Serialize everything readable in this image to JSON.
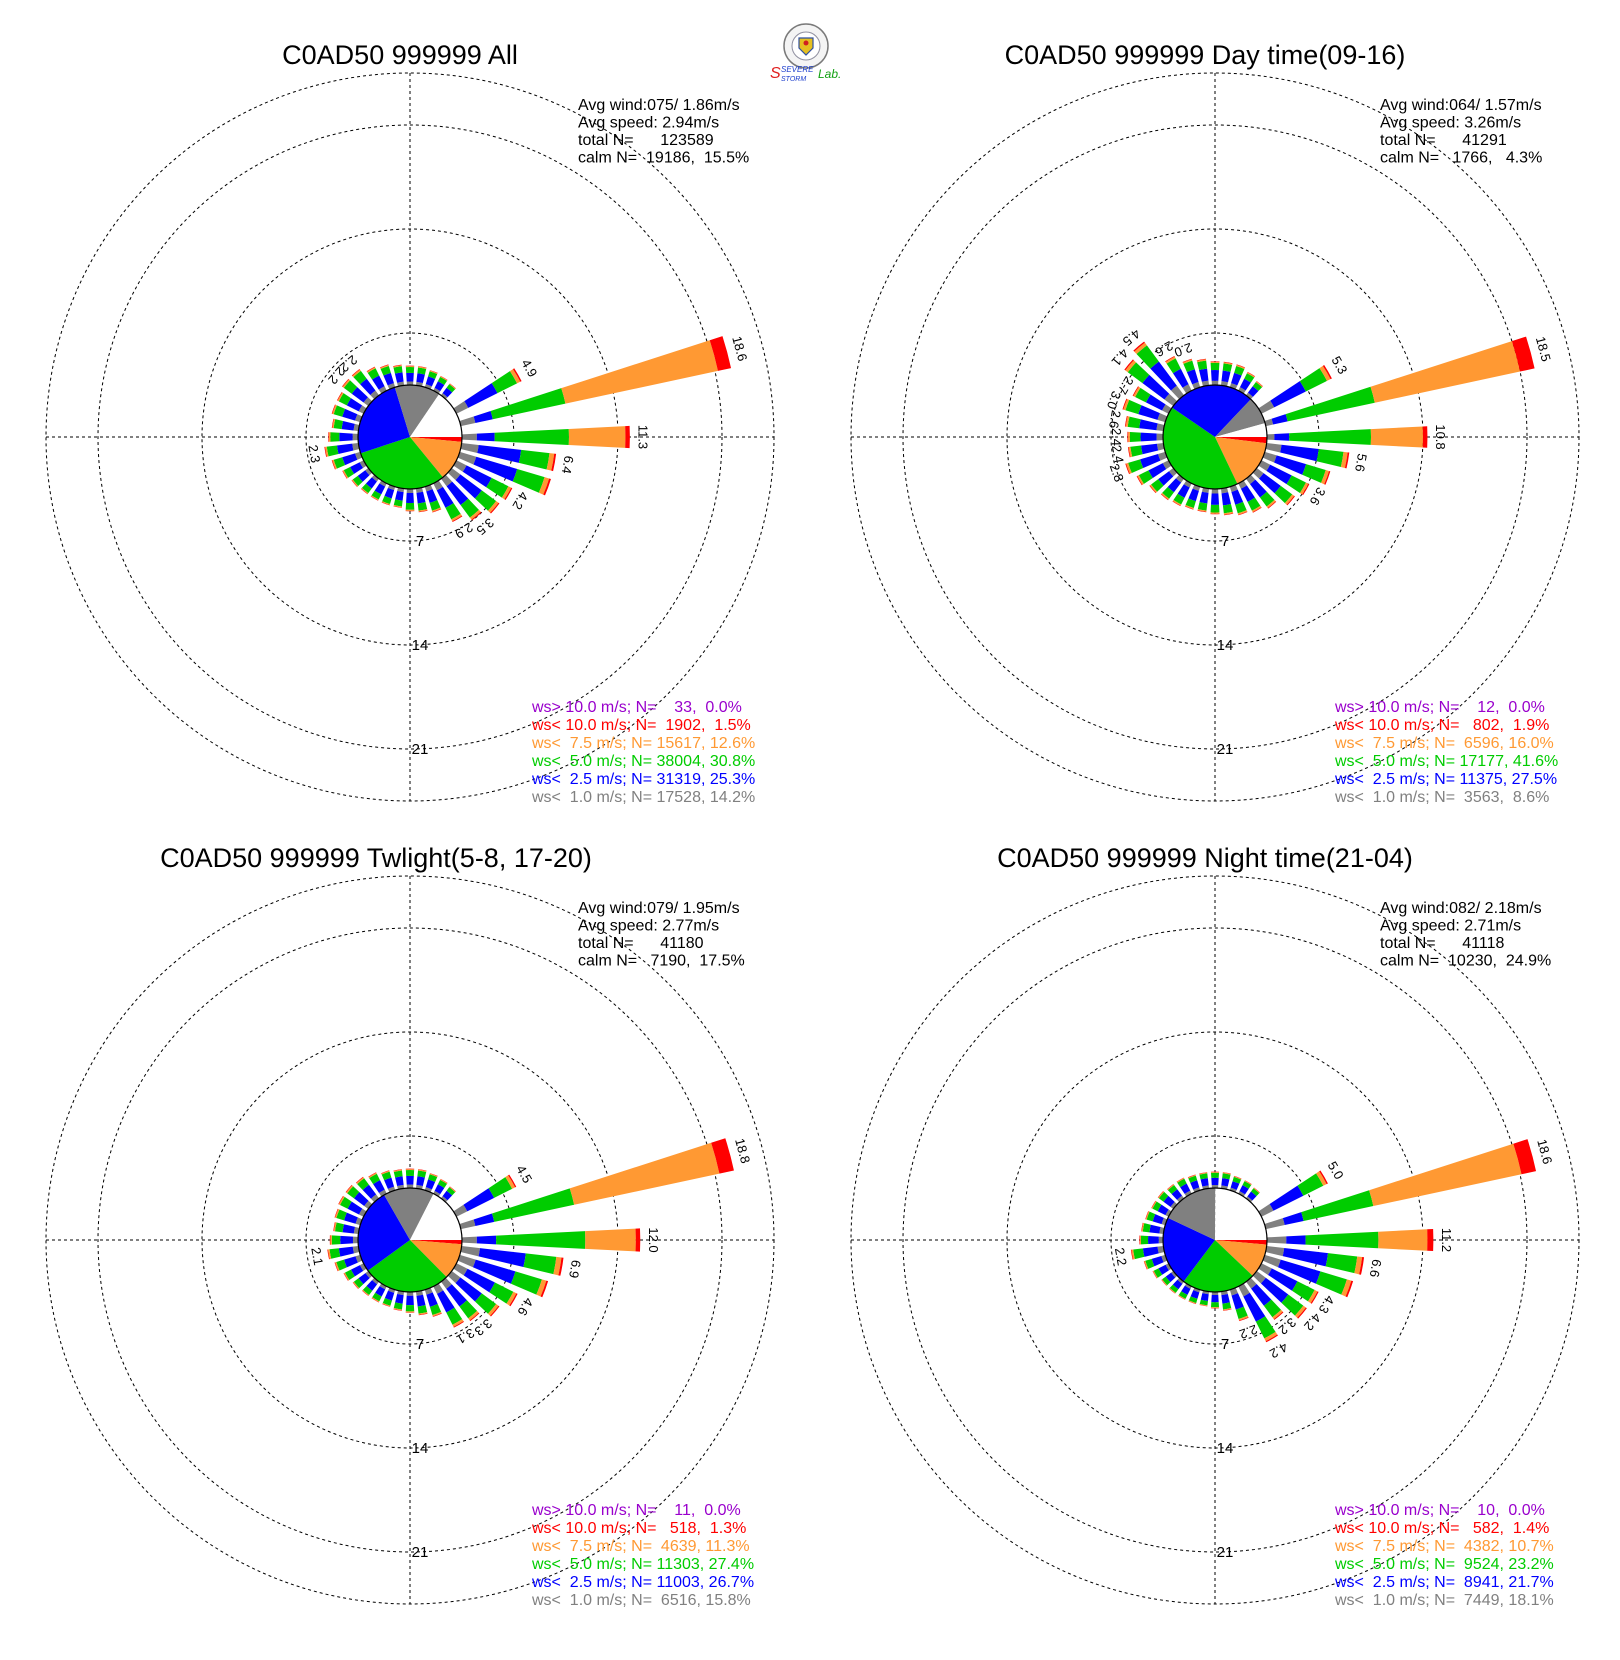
{
  "logo": {
    "lines": [
      "SEVERE",
      "STORM",
      "Lab."
    ],
    "colors": {
      "s_big": "#e02020",
      "evere": "#1a3ccc",
      "torm": "#1a3ccc",
      "lab": "#10a010"
    }
  },
  "colors": {
    "gt10": "#9900cc",
    "lt10": "#ff0000",
    "lt7_5": "#ff9933",
    "lt5": "#00cc00",
    "lt2_5": "#0000ff",
    "lt1": "#808080",
    "calm": "#ffffff",
    "grid": "#000000"
  },
  "chart_data": [
    {
      "type": "wind-rose",
      "title": "C0AD50 999999 All",
      "stats": [
        "Avg wind:075/ 1.86m/s",
        "Avg speed: 2.94m/s",
        "total N=      123589",
        "calm N=  19186,  15.5%"
      ],
      "ring_labels": [
        "7",
        "14",
        "21"
      ],
      "rings_percent": [
        7,
        14,
        21
      ],
      "grid": true,
      "legend": [
        {
          "text": "ws> 10.0 m/s; N=    33,  0.0%",
          "color_key": "gt10"
        },
        {
          "text": "ws< 10.0 m/s; N=  1902,  1.5%",
          "color_key": "lt10"
        },
        {
          "text": "ws<  7.5 m/s; N= 15617, 12.6%",
          "color_key": "lt7_5"
        },
        {
          "text": "ws<  5.0 m/s; N= 38004, 30.8%",
          "color_key": "lt5"
        },
        {
          "text": "ws<  2.5 m/s; N= 31319, 25.3%",
          "color_key": "lt2_5"
        },
        {
          "text": "ws<  1.0 m/s; N= 17528, 14.2%",
          "color_key": "lt1"
        }
      ],
      "calm_pie_percent": {
        "lt1": 14.2,
        "lt2_5": 25.3,
        "lt5": 30.8,
        "lt7_5": 12.6,
        "lt10": 1.5,
        "calm": 15.5
      },
      "bars": [
        {
          "dir": 0,
          "total": 1.3
        },
        {
          "dir": 10,
          "total": 1.3
        },
        {
          "dir": 20,
          "total": 1.2
        },
        {
          "dir": 30,
          "total": 1.1
        },
        {
          "dir": 40,
          "total": 1.0
        },
        {
          "dir": 60,
          "total": 4.9,
          "label": "4.9"
        },
        {
          "dir": 75,
          "total": 18.6,
          "label": "18.6",
          "parts": {
            "lt1": 1.0,
            "lt2_5": 1.2,
            "lt5": 5.0,
            "lt7_5": 10.5,
            "lt10": 0.9
          }
        },
        {
          "dir": 90,
          "total": 11.3,
          "label": "11.3",
          "parts": {
            "lt1": 1.0,
            "lt2_5": 1.2,
            "lt5": 5.0,
            "lt7_5": 3.8,
            "lt10": 0.3
          }
        },
        {
          "dir": 100,
          "total": 6.4,
          "label": "6.4"
        },
        {
          "dir": 110,
          "total": 6.4
        },
        {
          "dir": 120,
          "total": 4.2,
          "label": "4.2"
        },
        {
          "dir": 130,
          "total": 4.0
        },
        {
          "dir": 140,
          "total": 3.5,
          "label": "3.5"
        },
        {
          "dir": 150,
          "total": 2.9,
          "label": "2.9"
        },
        {
          "dir": 160,
          "total": 1.8
        },
        {
          "dir": 170,
          "total": 1.6
        },
        {
          "dir": 180,
          "total": 1.5
        },
        {
          "dir": 190,
          "total": 1.3
        },
        {
          "dir": 200,
          "total": 1.3
        },
        {
          "dir": 210,
          "total": 1.3
        },
        {
          "dir": 220,
          "total": 1.3
        },
        {
          "dir": 230,
          "total": 1.4
        },
        {
          "dir": 240,
          "total": 1.6
        },
        {
          "dir": 250,
          "total": 2.0
        },
        {
          "dir": 260,
          "total": 2.3,
          "label": "2.3"
        },
        {
          "dir": 270,
          "total": 2.0
        },
        {
          "dir": 280,
          "total": 1.8
        },
        {
          "dir": 290,
          "total": 2.0
        },
        {
          "dir": 300,
          "total": 2.0
        },
        {
          "dir": 310,
          "total": 2.2,
          "label": "2.2"
        },
        {
          "dir": 320,
          "total": 2.2,
          "label": "2.2"
        },
        {
          "dir": 330,
          "total": 1.8
        },
        {
          "dir": 340,
          "total": 1.6
        },
        {
          "dir": 350,
          "total": 1.4
        }
      ]
    },
    {
      "type": "wind-rose",
      "title": "C0AD50 999999 Day time(09-16)",
      "stats": [
        "Avg wind:064/ 1.57m/s",
        "Avg speed: 3.26m/s",
        "total N=      41291",
        "calm N=   1766,   4.3%"
      ],
      "ring_labels": [
        "7",
        "14",
        "21"
      ],
      "rings_percent": [
        7,
        14,
        21
      ],
      "grid": true,
      "legend": [
        {
          "text": "ws> 10.0 m/s; N=    12,  0.0%",
          "color_key": "gt10"
        },
        {
          "text": "ws< 10.0 m/s; N=   802,  1.9%",
          "color_key": "lt10"
        },
        {
          "text": "ws<  7.5 m/s; N=  6596, 16.0%",
          "color_key": "lt7_5"
        },
        {
          "text": "ws<  5.0 m/s; N= 17177, 41.6%",
          "color_key": "lt5"
        },
        {
          "text": "ws<  2.5 m/s; N= 11375, 27.5%",
          "color_key": "lt2_5"
        },
        {
          "text": "ws<  1.0 m/s; N=  3563,  8.6%",
          "color_key": "lt1"
        }
      ],
      "calm_pie_percent": {
        "lt1": 8.6,
        "lt2_5": 27.5,
        "lt5": 41.6,
        "lt7_5": 16.0,
        "lt10": 1.9,
        "calm": 4.3
      },
      "bars": [
        {
          "dir": 0,
          "total": 1.6
        },
        {
          "dir": 10,
          "total": 1.6
        },
        {
          "dir": 20,
          "total": 1.6
        },
        {
          "dir": 30,
          "total": 1.4
        },
        {
          "dir": 40,
          "total": 1.2
        },
        {
          "dir": 60,
          "total": 5.3,
          "label": "5.3"
        },
        {
          "dir": 75,
          "total": 18.5,
          "label": "18.5",
          "parts": {
            "lt1": 0.5,
            "lt2_5": 1.0,
            "lt5": 6.0,
            "lt7_5": 10.0,
            "lt10": 1.0
          }
        },
        {
          "dir": 90,
          "total": 10.8,
          "label": "10.8",
          "parts": {
            "lt1": 0.5,
            "lt2_5": 1.0,
            "lt5": 5.5,
            "lt7_5": 3.5,
            "lt10": 0.3
          }
        },
        {
          "dir": 100,
          "total": 5.6,
          "label": "5.6"
        },
        {
          "dir": 110,
          "total": 4.6
        },
        {
          "dir": 120,
          "total": 3.6,
          "label": "3.6"
        },
        {
          "dir": 130,
          "total": 3.2
        },
        {
          "dir": 140,
          "total": 2.5
        },
        {
          "dir": 150,
          "total": 2.2
        },
        {
          "dir": 160,
          "total": 2.0
        },
        {
          "dir": 170,
          "total": 1.8
        },
        {
          "dir": 180,
          "total": 1.7
        },
        {
          "dir": 190,
          "total": 1.6
        },
        {
          "dir": 200,
          "total": 1.6
        },
        {
          "dir": 210,
          "total": 1.7
        },
        {
          "dir": 220,
          "total": 1.8
        },
        {
          "dir": 230,
          "total": 2.0
        },
        {
          "dir": 240,
          "total": 2.4
        },
        {
          "dir": 250,
          "total": 2.8,
          "label": "2.8"
        },
        {
          "dir": 260,
          "total": 2.4,
          "label": "2.4"
        },
        {
          "dir": 270,
          "total": 2.4,
          "label": "2.4"
        },
        {
          "dir": 280,
          "total": 2.6,
          "label": "2.6"
        },
        {
          "dir": 290,
          "total": 3.0,
          "label": "3.0"
        },
        {
          "dir": 300,
          "total": 2.7,
          "label": "2.7"
        },
        {
          "dir": 310,
          "total": 4.1,
          "label": "4.1"
        },
        {
          "dir": 320,
          "total": 4.5,
          "label": "4.5"
        },
        {
          "dir": 330,
          "total": 2.6,
          "label": "2.6"
        },
        {
          "dir": 340,
          "total": 2.0,
          "label": "2.0"
        },
        {
          "dir": 350,
          "total": 1.8
        }
      ]
    },
    {
      "type": "wind-rose",
      "title": "C0AD50 999999 Twlight(5-8, 17-20)",
      "stats": [
        "Avg wind:079/ 1.95m/s",
        "Avg speed: 2.77m/s",
        "total N=      41180",
        "calm N=   7190,  17.5%"
      ],
      "ring_labels": [
        "7",
        "14",
        "21"
      ],
      "rings_percent": [
        7,
        14,
        21
      ],
      "grid": true,
      "legend": [
        {
          "text": "ws> 10.0 m/s; N=    11,  0.0%",
          "color_key": "gt10"
        },
        {
          "text": "ws< 10.0 m/s; N=   518,  1.3%",
          "color_key": "lt10"
        },
        {
          "text": "ws<  7.5 m/s; N=  4639, 11.3%",
          "color_key": "lt7_5"
        },
        {
          "text": "ws<  5.0 m/s; N= 11303, 27.4%",
          "color_key": "lt5"
        },
        {
          "text": "ws<  2.5 m/s; N= 11003, 26.7%",
          "color_key": "lt2_5"
        },
        {
          "text": "ws<  1.0 m/s; N=  6516, 15.8%",
          "color_key": "lt1"
        }
      ],
      "calm_pie_percent": {
        "lt1": 15.8,
        "lt2_5": 26.7,
        "lt5": 27.4,
        "lt7_5": 11.3,
        "lt10": 1.3,
        "calm": 17.5
      },
      "bars": [
        {
          "dir": 0,
          "total": 1.3
        },
        {
          "dir": 10,
          "total": 1.3
        },
        {
          "dir": 20,
          "total": 1.2
        },
        {
          "dir": 30,
          "total": 1.1
        },
        {
          "dir": 40,
          "total": 1.0
        },
        {
          "dir": 60,
          "total": 4.5,
          "label": "4.5"
        },
        {
          "dir": 75,
          "total": 18.8,
          "label": "18.8",
          "parts": {
            "lt1": 1.0,
            "lt2_5": 1.3,
            "lt5": 5.5,
            "lt7_5": 10.0,
            "lt10": 1.0
          }
        },
        {
          "dir": 90,
          "total": 12.0,
          "label": "12.0",
          "parts": {
            "lt1": 1.0,
            "lt2_5": 1.3,
            "lt5": 6.0,
            "lt7_5": 3.4,
            "lt10": 0.3
          }
        },
        {
          "dir": 100,
          "total": 6.9,
          "label": "6.9"
        },
        {
          "dir": 110,
          "total": 6.2
        },
        {
          "dir": 120,
          "total": 4.6,
          "label": "4.6"
        },
        {
          "dir": 130,
          "total": 4.0
        },
        {
          "dir": 140,
          "total": 3.3,
          "label": "3.3"
        },
        {
          "dir": 150,
          "total": 3.1,
          "label": "3.1"
        },
        {
          "dir": 160,
          "total": 1.9
        },
        {
          "dir": 170,
          "total": 1.6
        },
        {
          "dir": 180,
          "total": 1.4
        },
        {
          "dir": 190,
          "total": 1.3
        },
        {
          "dir": 200,
          "total": 1.2
        },
        {
          "dir": 210,
          "total": 1.2
        },
        {
          "dir": 220,
          "total": 1.2
        },
        {
          "dir": 230,
          "total": 1.3
        },
        {
          "dir": 240,
          "total": 1.5
        },
        {
          "dir": 250,
          "total": 1.8
        },
        {
          "dir": 260,
          "total": 2.1,
          "label": "2.1"
        },
        {
          "dir": 270,
          "total": 1.9
        },
        {
          "dir": 280,
          "total": 1.7
        },
        {
          "dir": 290,
          "total": 1.8
        },
        {
          "dir": 300,
          "total": 1.9
        },
        {
          "dir": 310,
          "total": 1.9
        },
        {
          "dir": 320,
          "total": 1.8
        },
        {
          "dir": 330,
          "total": 1.6
        },
        {
          "dir": 340,
          "total": 1.4
        },
        {
          "dir": 350,
          "total": 1.3
        }
      ]
    },
    {
      "type": "wind-rose",
      "title": "C0AD50 999999 Night time(21-04)",
      "stats": [
        "Avg wind:082/ 2.18m/s",
        "Avg speed: 2.71m/s",
        "total N=      41118",
        "calm N=  10230,  24.9%"
      ],
      "ring_labels": [
        "7",
        "14",
        "21"
      ],
      "rings_percent": [
        7,
        14,
        21
      ],
      "grid": true,
      "legend": [
        {
          "text": "ws> 10.0 m/s; N=    10,  0.0%",
          "color_key": "gt10"
        },
        {
          "text": "ws< 10.0 m/s; N=   582,  1.4%",
          "color_key": "lt10"
        },
        {
          "text": "ws<  7.5 m/s; N=  4382, 10.7%",
          "color_key": "lt7_5"
        },
        {
          "text": "ws<  5.0 m/s; N=  9524, 23.2%",
          "color_key": "lt5"
        },
        {
          "text": "ws<  2.5 m/s; N=  8941, 21.7%",
          "color_key": "lt2_5"
        },
        {
          "text": "ws<  1.0 m/s; N=  7449, 18.1%",
          "color_key": "lt1"
        }
      ],
      "calm_pie_percent": {
        "lt1": 18.1,
        "lt2_5": 21.7,
        "lt5": 23.2,
        "lt7_5": 10.7,
        "lt10": 1.4,
        "calm": 24.9
      },
      "bars": [
        {
          "dir": 0,
          "total": 1.1
        },
        {
          "dir": 10,
          "total": 1.1
        },
        {
          "dir": 20,
          "total": 1.0
        },
        {
          "dir": 30,
          "total": 1.0
        },
        {
          "dir": 40,
          "total": 0.9
        },
        {
          "dir": 60,
          "total": 5.0,
          "label": "5.0"
        },
        {
          "dir": 75,
          "total": 18.6,
          "label": "18.6",
          "parts": {
            "lt1": 1.3,
            "lt2_5": 1.3,
            "lt5": 4.8,
            "lt7_5": 10.2,
            "lt10": 1.0
          }
        },
        {
          "dir": 90,
          "total": 11.2,
          "label": "11.2",
          "parts": {
            "lt1": 1.3,
            "lt2_5": 1.3,
            "lt5": 4.9,
            "lt7_5": 3.3,
            "lt10": 0.4
          }
        },
        {
          "dir": 100,
          "total": 6.6,
          "label": "6.6"
        },
        {
          "dir": 110,
          "total": 6.2
        },
        {
          "dir": 120,
          "total": 4.3,
          "label": "4.3"
        },
        {
          "dir": 130,
          "total": 4.2,
          "label": "4.2"
        },
        {
          "dir": 140,
          "total": 3.2,
          "label": "3.2"
        },
        {
          "dir": 150,
          "total": 4.2,
          "label": "4.2"
        },
        {
          "dir": 160,
          "total": 2.2,
          "label": "2.2"
        },
        {
          "dir": 170,
          "total": 1.3
        },
        {
          "dir": 180,
          "total": 1.1
        },
        {
          "dir": 190,
          "total": 1.0
        },
        {
          "dir": 200,
          "total": 1.0
        },
        {
          "dir": 210,
          "total": 1.0
        },
        {
          "dir": 220,
          "total": 1.0
        },
        {
          "dir": 230,
          "total": 1.0
        },
        {
          "dir": 240,
          "total": 1.2
        },
        {
          "dir": 250,
          "total": 1.5
        },
        {
          "dir": 260,
          "total": 2.2,
          "label": "2.2"
        },
        {
          "dir": 270,
          "total": 1.6
        },
        {
          "dir": 280,
          "total": 1.5
        },
        {
          "dir": 290,
          "total": 1.4
        },
        {
          "dir": 300,
          "total": 1.3
        },
        {
          "dir": 310,
          "total": 1.3
        },
        {
          "dir": 320,
          "total": 1.2
        },
        {
          "dir": 330,
          "total": 1.2
        },
        {
          "dir": 340,
          "total": 1.1
        },
        {
          "dir": 350,
          "total": 1.1
        }
      ]
    }
  ]
}
